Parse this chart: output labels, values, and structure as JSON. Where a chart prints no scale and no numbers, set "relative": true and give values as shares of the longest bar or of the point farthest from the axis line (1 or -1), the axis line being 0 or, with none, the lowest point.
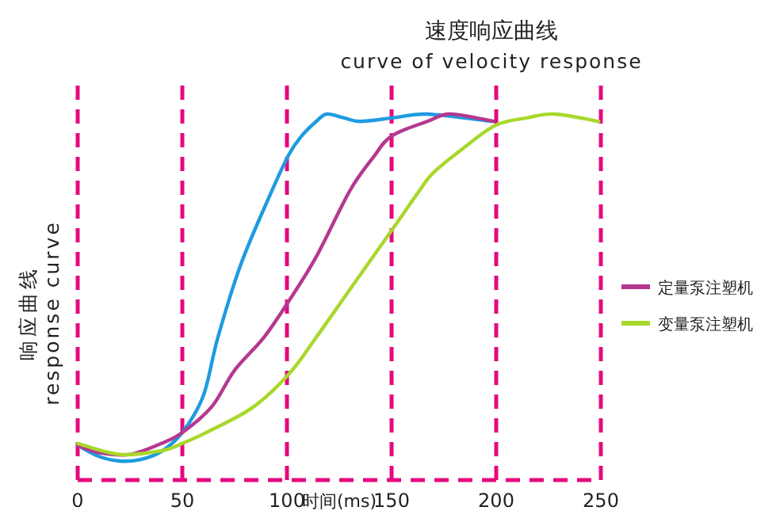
{
  "chart_data": {
    "type": "line",
    "title": "速度响应曲线",
    "subtitle": "curve of velocity response",
    "xlabel": "时间(ms)",
    "ylabel": "响应曲线\nresponse curve",
    "relative": true,
    "xlim": [
      0,
      250
    ],
    "xticks": [
      0,
      50,
      100,
      150,
      200,
      250
    ],
    "grid": "x",
    "legend": "right",
    "series": [
      {
        "color": "#1e9be0",
        "x": [
          0,
          10,
          20,
          30,
          40,
          50,
          60,
          67,
          78,
          92,
          101,
          107,
          114,
          119,
          127,
          135,
          151,
          167,
          198
        ],
        "values": [
          0.095,
          0.065,
          0.052,
          0.056,
          0.078,
          0.13,
          0.23,
          0.39,
          0.59,
          0.78,
          0.89,
          0.94,
          0.98,
          1.0,
          0.99,
          0.98,
          0.99,
          1.0,
          0.98
        ]
      },
      {
        "name": "定量泵注塑机",
        "color": "#b5388e",
        "x": [
          0,
          10,
          25,
          40,
          50,
          64,
          75,
          89,
          101,
          114,
          130,
          141,
          150,
          167,
          177,
          190,
          199
        ],
        "values": [
          0.095,
          0.075,
          0.07,
          0.1,
          0.13,
          0.2,
          0.3,
          0.39,
          0.49,
          0.61,
          0.79,
          0.88,
          0.94,
          0.98,
          1.0,
          0.99,
          0.98
        ]
      },
      {
        "name": "变量泵注塑机",
        "color": "#a8d82a",
        "x": [
          0,
          20,
          40,
          50,
          65,
          84,
          101,
          114,
          130,
          151,
          162,
          170,
          185,
          200,
          215,
          228,
          249
        ],
        "values": [
          0.1,
          0.07,
          0.08,
          0.1,
          0.14,
          0.2,
          0.29,
          0.39,
          0.52,
          0.69,
          0.78,
          0.84,
          0.91,
          0.97,
          0.99,
          1.0,
          0.98
        ]
      }
    ]
  }
}
